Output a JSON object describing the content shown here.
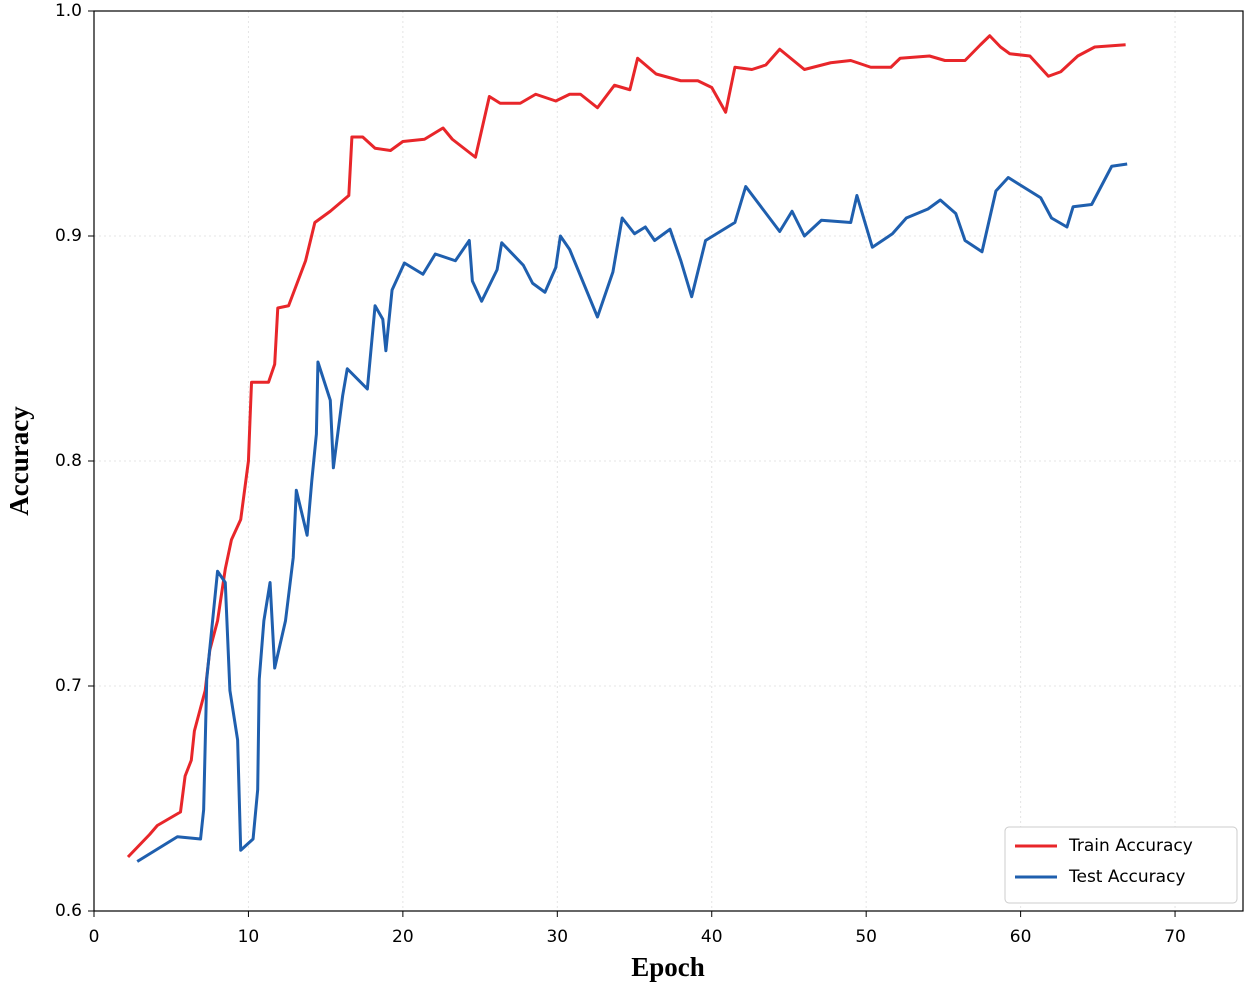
{
  "chart_data": {
    "type": "line",
    "x_label": "Epoch",
    "y_label": "Accuracy",
    "xlim": [
      0,
      74.4
    ],
    "ylim": [
      0.6,
      1.0
    ],
    "xticks": [
      0,
      10,
      20,
      30,
      40,
      50,
      60,
      70
    ],
    "yticks": [
      0.6,
      0.7,
      0.8,
      0.9,
      {
        "value": 1.0,
        "label": "1.0"
      }
    ],
    "grid": true,
    "legend": "lower right",
    "series": [
      {
        "name": "Train Accuracy",
        "color": "#e8262a",
        "x": [
          2.2,
          3.6,
          4.1,
          5.6,
          5.9,
          6.3,
          6.5,
          7.2,
          7.5,
          8.0,
          8.5,
          8.9,
          9.5,
          10.0,
          10.1,
          10.2,
          11.3,
          11.7,
          11.9,
          12.6,
          13.7,
          14.3,
          15.3,
          16.5,
          16.7,
          17.4,
          18.2,
          19.2,
          20.0,
          21.4,
          22.6,
          23.2,
          24.7,
          25.6,
          26.3,
          27.6,
          28.6,
          29.9,
          30.8,
          31.5,
          32.6,
          33.7,
          34.7,
          35.2,
          36.4,
          38.0,
          39.1,
          40.0,
          40.9,
          41.5,
          42.6,
          43.5,
          44.4,
          46.0,
          47.7,
          49.0,
          50.3,
          51.6,
          52.2,
          54.1,
          55.1,
          56.4,
          57.4,
          58.0,
          58.7,
          59.3,
          60.6,
          61.8,
          62.6,
          63.7,
          64.8,
          66.8
        ],
        "values": [
          0.624,
          0.634,
          0.638,
          0.644,
          0.66,
          0.667,
          0.68,
          0.698,
          0.716,
          0.729,
          0.752,
          0.765,
          0.774,
          0.8,
          0.818,
          0.835,
          0.835,
          0.843,
          0.868,
          0.869,
          0.889,
          0.906,
          0.911,
          0.918,
          0.944,
          0.944,
          0.939,
          0.938,
          0.942,
          0.943,
          0.948,
          0.943,
          0.935,
          0.962,
          0.959,
          0.959,
          0.963,
          0.96,
          0.963,
          0.963,
          0.957,
          0.967,
          0.965,
          0.979,
          0.972,
          0.969,
          0.969,
          0.966,
          0.955,
          0.975,
          0.974,
          0.976,
          0.983,
          0.974,
          0.977,
          0.978,
          0.975,
          0.975,
          0.979,
          0.98,
          0.978,
          0.978,
          0.985,
          0.989,
          0.984,
          0.981,
          0.98,
          0.971,
          0.973,
          0.98,
          0.984,
          0.985
        ]
      },
      {
        "name": "Test Accuracy",
        "color": "#1f5fae",
        "x": [
          2.8,
          5.4,
          6.9,
          7.1,
          7.3,
          8.0,
          8.5,
          8.8,
          9.3,
          9.5,
          10.3,
          10.6,
          10.7,
          11.0,
          11.4,
          11.7,
          12.4,
          12.9,
          13.1,
          13.8,
          14.1,
          14.4,
          14.5,
          15.3,
          15.5,
          16.1,
          16.4,
          17.7,
          18.2,
          18.7,
          18.9,
          19.3,
          20.1,
          21.3,
          22.1,
          23.4,
          24.3,
          24.5,
          25.1,
          26.1,
          26.4,
          27.8,
          28.4,
          29.2,
          29.9,
          30.2,
          30.8,
          32.6,
          33.6,
          34.2,
          35.0,
          35.7,
          36.3,
          37.3,
          38.0,
          38.7,
          39.6,
          41.5,
          42.2,
          44.4,
          45.2,
          46.0,
          47.1,
          49.0,
          49.4,
          50.4,
          51.7,
          52.6,
          54.0,
          54.8,
          55.8,
          56.4,
          57.5,
          58.4,
          59.2,
          61.3,
          62.0,
          63.0,
          63.4,
          64.6,
          65.9,
          66.9
        ],
        "values": [
          0.622,
          0.633,
          0.632,
          0.645,
          0.703,
          0.751,
          0.746,
          0.698,
          0.676,
          0.627,
          0.632,
          0.654,
          0.703,
          0.729,
          0.746,
          0.708,
          0.729,
          0.757,
          0.787,
          0.767,
          0.791,
          0.812,
          0.844,
          0.827,
          0.797,
          0.829,
          0.841,
          0.832,
          0.869,
          0.863,
          0.849,
          0.876,
          0.888,
          0.883,
          0.892,
          0.889,
          0.898,
          0.88,
          0.871,
          0.885,
          0.897,
          0.887,
          0.879,
          0.875,
          0.886,
          0.9,
          0.894,
          0.864,
          0.884,
          0.908,
          0.901,
          0.904,
          0.898,
          0.903,
          0.889,
          0.873,
          0.898,
          0.906,
          0.922,
          0.902,
          0.911,
          0.9,
          0.907,
          0.906,
          0.918,
          0.895,
          0.901,
          0.908,
          0.912,
          0.916,
          0.91,
          0.898,
          0.893,
          0.92,
          0.926,
          0.917,
          0.908,
          0.904,
          0.913,
          0.914,
          0.931,
          0.932
        ]
      }
    ]
  }
}
